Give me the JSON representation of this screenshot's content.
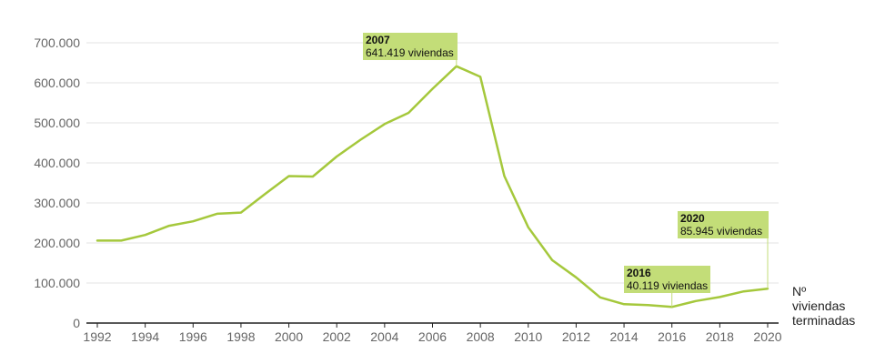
{
  "chart_data": {
    "type": "line",
    "title": "",
    "xlabel": "",
    "ylabel": "",
    "series_label": [
      "Nº",
      "viviendas",
      "terminadas"
    ],
    "x": [
      1992,
      1993,
      1994,
      1995,
      1996,
      1997,
      1998,
      1999,
      2000,
      2001,
      2002,
      2003,
      2004,
      2005,
      2006,
      2007,
      2008,
      2009,
      2010,
      2011,
      2012,
      2013,
      2014,
      2015,
      2016,
      2017,
      2018,
      2019,
      2020
    ],
    "series": [
      {
        "values": [
          206000,
          206000,
          220000,
          243000,
          254000,
          273000,
          276000,
          322000,
          367000,
          366000,
          416000,
          458000,
          497000,
          525000,
          585000,
          641419,
          615000,
          367000,
          239000,
          157000,
          114000,
          64000,
          47000,
          45000,
          40119,
          55000,
          65000,
          79000,
          85945
        ]
      }
    ],
    "ylim": [
      0,
      700000
    ],
    "xlim": [
      1992,
      2020
    ],
    "yticks": [
      0,
      100000,
      200000,
      300000,
      400000,
      500000,
      600000,
      700000
    ],
    "ytick_labels": [
      "0",
      "100.000",
      "200.000",
      "300.000",
      "400.000",
      "500.000",
      "600.000",
      "700.000"
    ],
    "xticks": [
      1992,
      1994,
      1996,
      1998,
      2000,
      2002,
      2004,
      2006,
      2008,
      2010,
      2012,
      2014,
      2016,
      2018,
      2020
    ],
    "xtick_labels": [
      "1992",
      "1994",
      "1996",
      "1998",
      "2000",
      "2002",
      "2004",
      "2006",
      "2008",
      "2010",
      "2012",
      "2014",
      "2016",
      "2018",
      "2020"
    ],
    "grid": true,
    "colors": {
      "line": "#a5c83c",
      "annotation_bg": "#c3dd78",
      "grid": "#e3e3e3",
      "axis": "#222222"
    },
    "annotations": [
      {
        "year": "2007",
        "text": "641.419 viviendas",
        "x": 2007,
        "y": 641419
      },
      {
        "year": "2016",
        "text": "40.119 viviendas",
        "x": 2016,
        "y": 40119
      },
      {
        "year": "2020",
        "text": "85.945 viviendas",
        "x": 2020,
        "y": 85945
      }
    ]
  }
}
